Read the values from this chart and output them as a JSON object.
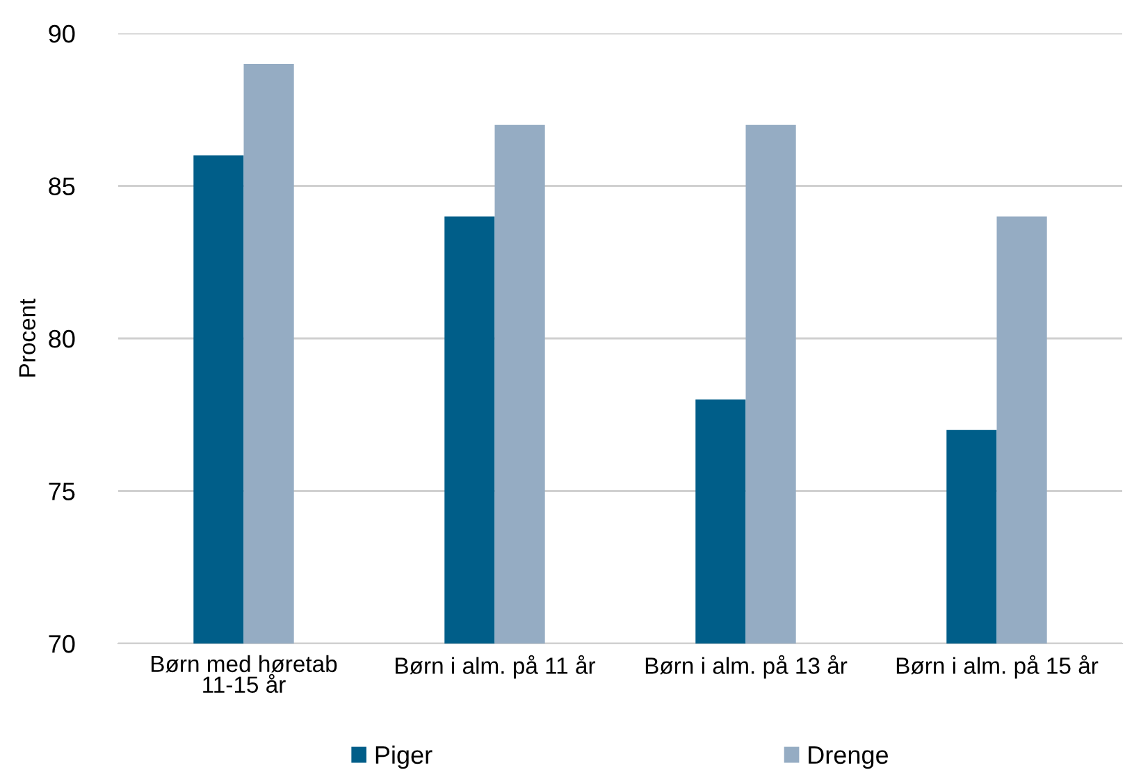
{
  "chart_data": {
    "type": "bar",
    "ylabel": "Procent",
    "categories": [
      "Børn med høretab\n11-15 år",
      "Børn i alm. på 11 år",
      "Børn i alm. på 13 år",
      "Børn i alm. på 15 år"
    ],
    "series": [
      {
        "name": "Piger",
        "color": "#005e89",
        "values": [
          86,
          84,
          78,
          77
        ]
      },
      {
        "name": "Drenge",
        "color": "#95acc3",
        "values": [
          89,
          87,
          87,
          84
        ]
      }
    ],
    "ylim": [
      70,
      90
    ],
    "yticks": [
      70,
      75,
      80,
      85,
      90
    ],
    "grid": "y",
    "legend": "bottom"
  }
}
